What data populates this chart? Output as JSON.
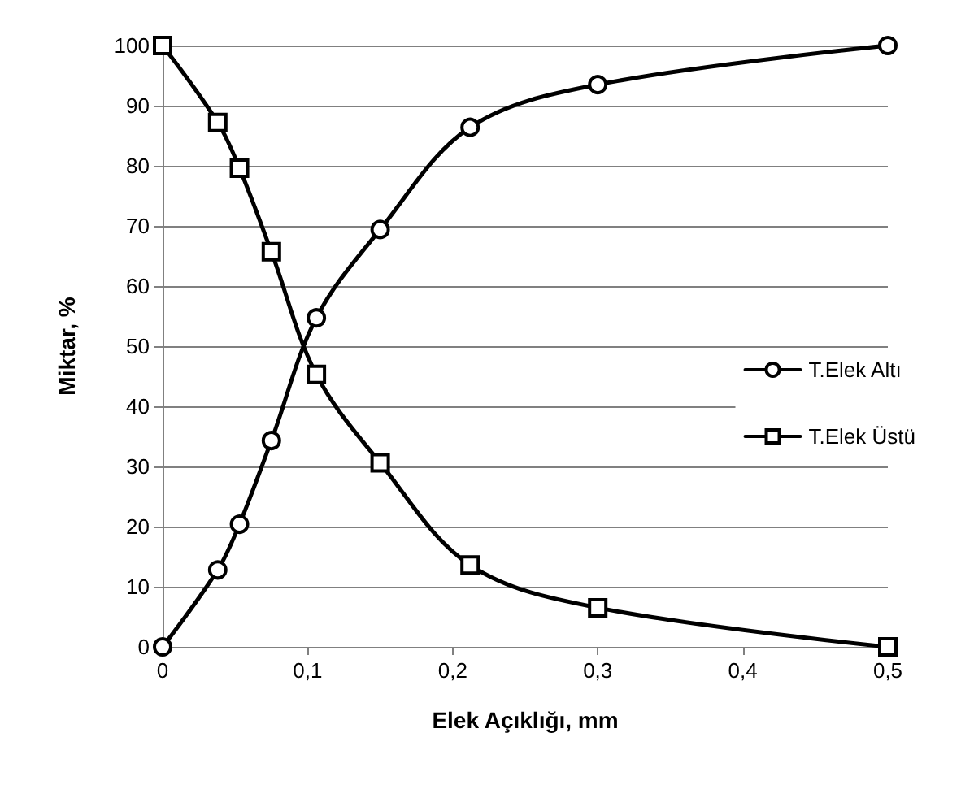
{
  "chart_data": {
    "type": "line",
    "xlabel": "Elek Açıklığı, mm",
    "ylabel": "Miktar, %",
    "xlim": [
      0,
      0.5
    ],
    "xticks": [
      0,
      {
        "value": 0.1,
        "label": "0,1"
      },
      {
        "value": 0.2,
        "label": "0,2"
      },
      {
        "value": 0.3,
        "label": "0,3"
      },
      {
        "value": 0.4,
        "label": "0,4"
      },
      {
        "value": 0.5,
        "label": "0,5"
      }
    ],
    "ylim": [
      0,
      100
    ],
    "yticks": [
      0,
      10,
      20,
      30,
      40,
      50,
      60,
      70,
      80,
      90,
      100
    ],
    "x": [
      0,
      0.038,
      0.053,
      0.075,
      0.106,
      0.15,
      0.212,
      0.3,
      0.5
    ],
    "series": [
      {
        "name": "T.Elek Altı",
        "color": "#000000",
        "marker": "circle",
        "values": [
          0,
          12.8,
          20.4,
          34.3,
          54.7,
          69.4,
          86.4,
          93.5,
          100
        ]
      },
      {
        "name": "T.Elek Üstü",
        "color": "#000000",
        "marker": "square",
        "values": [
          100,
          87.2,
          79.6,
          65.7,
          45.3,
          30.6,
          13.6,
          6.5,
          0
        ]
      }
    ],
    "grid": "y",
    "legend": "right",
    "line_style": "solid"
  }
}
